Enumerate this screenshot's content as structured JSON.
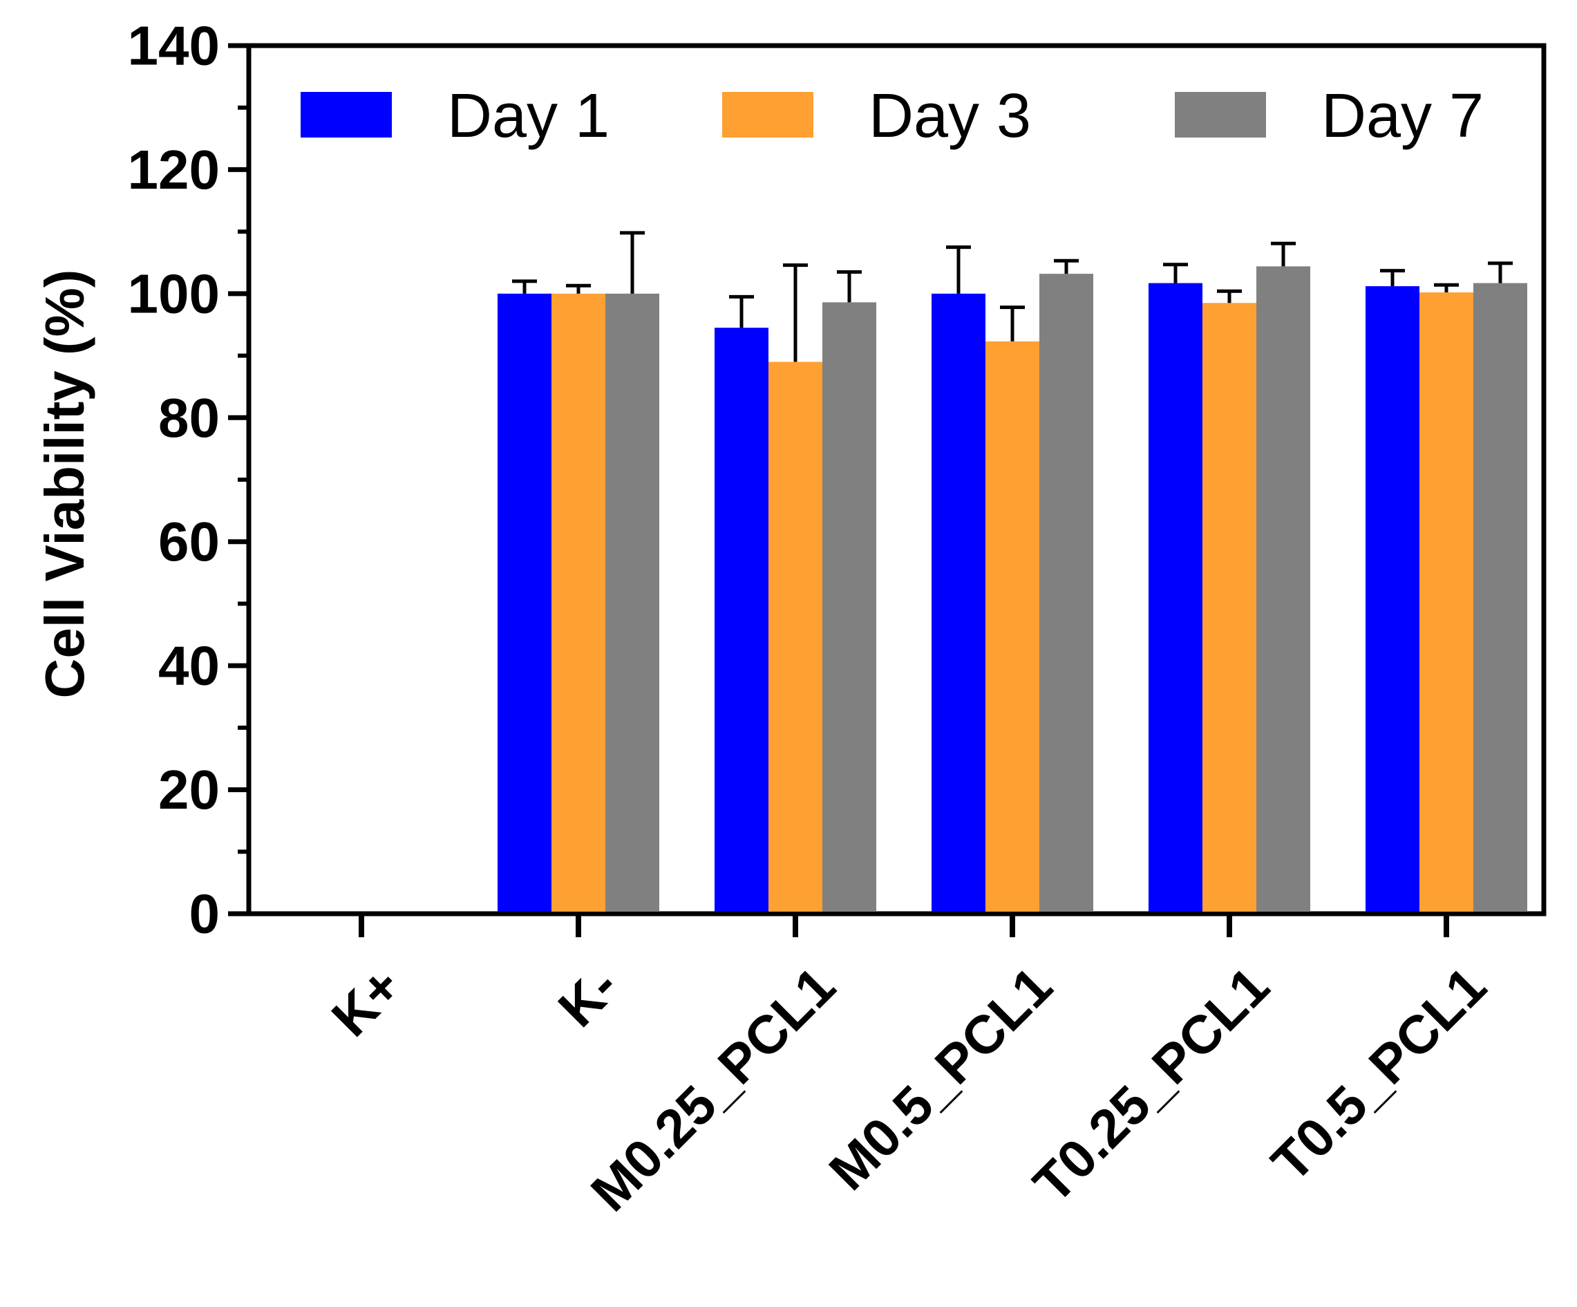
{
  "chart_data": {
    "type": "bar",
    "title": "",
    "xlabel": "",
    "ylabel": "Cell Viability (%)",
    "ylim": [
      0,
      140
    ],
    "y_ticks": [
      "0",
      "20",
      "40",
      "60",
      "80",
      "100",
      "120",
      "140"
    ],
    "y_tick_values": [
      0,
      20,
      40,
      60,
      80,
      100,
      120,
      140
    ],
    "grid": false,
    "legend_position": "top",
    "categories": [
      "K+",
      "K-",
      "M0.25_PCL1",
      "M0.5_PCL1",
      "T0.25_PCL1",
      "T0.5_PCL1"
    ],
    "series": [
      {
        "name": "Day 1",
        "color": "#0000FF",
        "values": [
          0,
          100,
          94.5,
          100,
          101.7,
          101.2
        ],
        "errors": [
          0,
          2,
          5,
          7.5,
          3,
          2.5
        ]
      },
      {
        "name": "Day 3",
        "color": "#FFA033",
        "values": [
          0,
          100,
          89,
          92.3,
          98.5,
          100.2
        ],
        "errors": [
          0,
          1.3,
          15.6,
          5.5,
          1.9,
          1.2
        ]
      },
      {
        "name": "Day 7",
        "color": "#808080",
        "values": [
          0,
          100,
          98.6,
          103.2,
          104.4,
          101.7
        ],
        "errors": [
          0,
          9.8,
          4.9,
          2.1,
          3.7,
          3.2
        ]
      }
    ]
  }
}
